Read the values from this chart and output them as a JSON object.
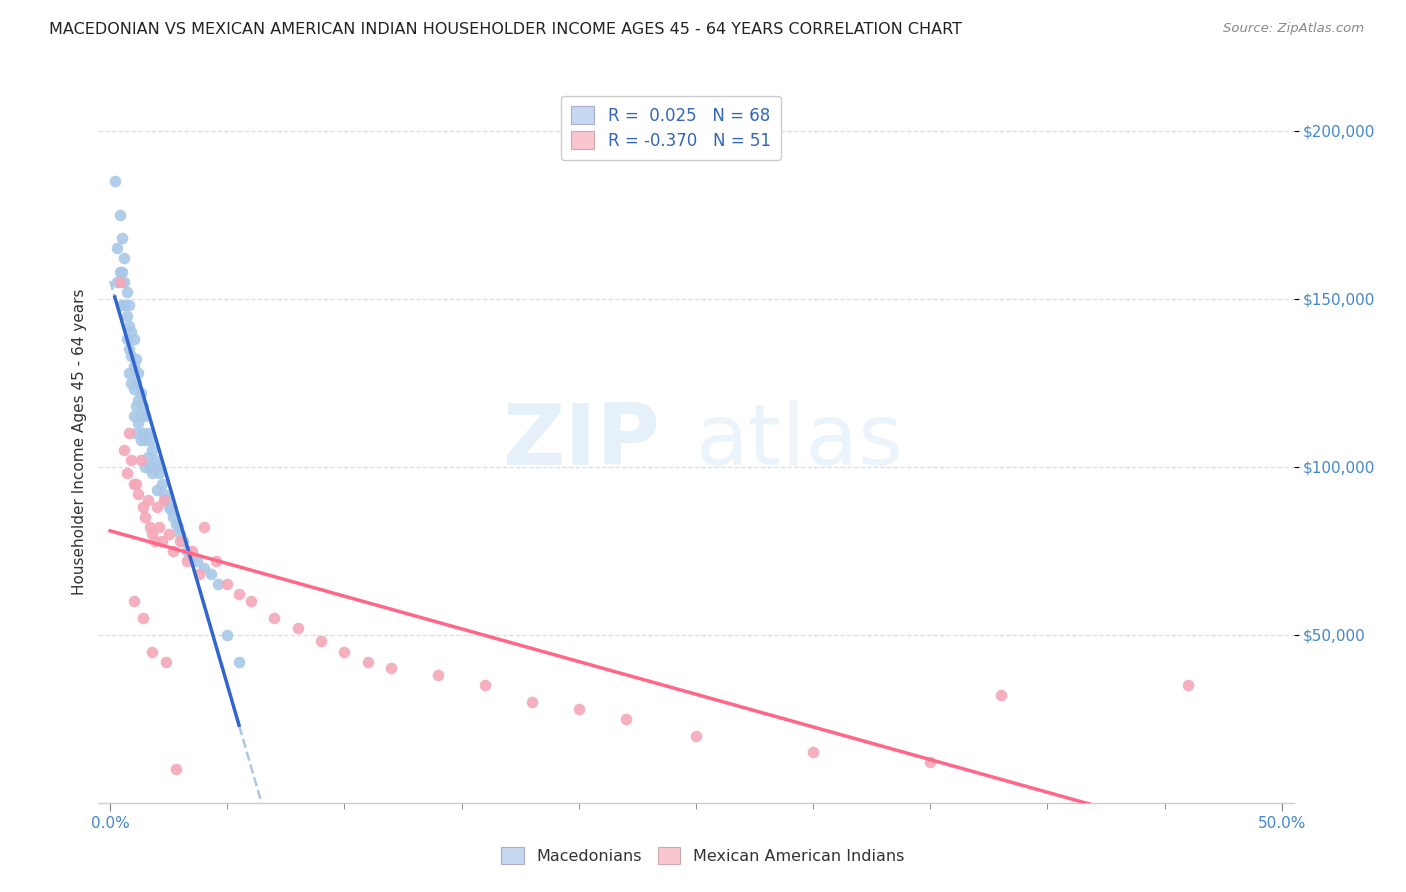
{
  "title": "MACEDONIAN VS MEXICAN AMERICAN INDIAN HOUSEHOLDER INCOME AGES 45 - 64 YEARS CORRELATION CHART",
  "source": "Source: ZipAtlas.com",
  "ylabel": "Householder Income Ages 45 - 64 years",
  "xlim": [
    -0.005,
    0.505
  ],
  "ylim": [
    0,
    215000
  ],
  "yticks": [
    50000,
    100000,
    150000,
    200000
  ],
  "ytick_labels": [
    "$50,000",
    "$100,000",
    "$150,000",
    "$200,000"
  ],
  "watermark_zip": "ZIP",
  "watermark_atlas": "atlas",
  "blue_scatter_color": "#a8c8e8",
  "pink_scatter_color": "#f4a8b8",
  "blue_line_color": "#3366cc",
  "pink_line_color": "#ff6688",
  "blue_dash_color": "#99bbdd",
  "legend_blue_text": "R =  0.025   N = 68",
  "legend_pink_text": "R = -0.370   N = 51",
  "legend_blue_fill": "#c5d8f0",
  "legend_pink_fill": "#f9c6d0",
  "macedonian_x": [
    0.002,
    0.003,
    0.003,
    0.004,
    0.004,
    0.005,
    0.005,
    0.005,
    0.006,
    0.006,
    0.006,
    0.007,
    0.007,
    0.007,
    0.008,
    0.008,
    0.008,
    0.008,
    0.009,
    0.009,
    0.009,
    0.01,
    0.01,
    0.01,
    0.01,
    0.011,
    0.011,
    0.011,
    0.011,
    0.012,
    0.012,
    0.012,
    0.013,
    0.013,
    0.013,
    0.014,
    0.014,
    0.015,
    0.015,
    0.015,
    0.016,
    0.016,
    0.017,
    0.017,
    0.018,
    0.018,
    0.019,
    0.02,
    0.02,
    0.021,
    0.022,
    0.023,
    0.024,
    0.025,
    0.026,
    0.027,
    0.028,
    0.029,
    0.03,
    0.031,
    0.033,
    0.035,
    0.037,
    0.04,
    0.043,
    0.046,
    0.05,
    0.055
  ],
  "macedonian_y": [
    185000,
    165000,
    155000,
    175000,
    158000,
    168000,
    158000,
    148000,
    162000,
    155000,
    148000,
    152000,
    145000,
    138000,
    148000,
    142000,
    135000,
    128000,
    140000,
    133000,
    125000,
    138000,
    130000,
    123000,
    115000,
    132000,
    125000,
    118000,
    110000,
    128000,
    120000,
    113000,
    122000,
    115000,
    108000,
    118000,
    110000,
    115000,
    108000,
    100000,
    110000,
    103000,
    108000,
    100000,
    105000,
    98000,
    102000,
    100000,
    93000,
    98000,
    95000,
    92000,
    90000,
    88000,
    87000,
    85000,
    83000,
    82000,
    80000,
    78000,
    75000,
    73000,
    72000,
    70000,
    68000,
    65000,
    50000,
    42000
  ],
  "mexican_x": [
    0.004,
    0.006,
    0.007,
    0.008,
    0.009,
    0.01,
    0.011,
    0.012,
    0.013,
    0.014,
    0.015,
    0.016,
    0.017,
    0.018,
    0.019,
    0.02,
    0.021,
    0.022,
    0.023,
    0.025,
    0.027,
    0.03,
    0.033,
    0.035,
    0.038,
    0.04,
    0.045,
    0.05,
    0.055,
    0.06,
    0.07,
    0.08,
    0.09,
    0.1,
    0.11,
    0.12,
    0.14,
    0.16,
    0.18,
    0.2,
    0.22,
    0.25,
    0.3,
    0.35,
    0.38,
    0.46,
    0.01,
    0.014,
    0.018,
    0.024,
    0.028
  ],
  "mexican_y": [
    155000,
    105000,
    98000,
    110000,
    102000,
    95000,
    95000,
    92000,
    102000,
    88000,
    85000,
    90000,
    82000,
    80000,
    78000,
    88000,
    82000,
    78000,
    90000,
    80000,
    75000,
    78000,
    72000,
    75000,
    68000,
    82000,
    72000,
    65000,
    62000,
    60000,
    55000,
    52000,
    48000,
    45000,
    42000,
    40000,
    38000,
    35000,
    30000,
    28000,
    25000,
    20000,
    15000,
    12000,
    32000,
    35000,
    60000,
    55000,
    45000,
    42000,
    10000
  ]
}
